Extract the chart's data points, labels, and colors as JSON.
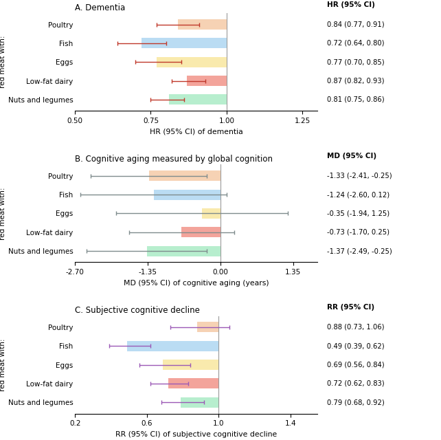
{
  "panel_A": {
    "title": "A. Dementia",
    "xlabel": "HR (95% CI) of dementia",
    "ylabel_col": "HR (95% CI)",
    "ref_line": 1.0,
    "xlim": [
      0.5,
      1.3
    ],
    "xticks": [
      0.5,
      0.75,
      1.0,
      1.25
    ],
    "xticklabels": [
      "0.50",
      "0.75",
      "1.00",
      "1.25"
    ],
    "categories": [
      "Poultry",
      "Fish",
      "Eggs",
      "Low-fat dairy",
      "Nuts and legumes"
    ],
    "bar_values": [
      0.84,
      0.72,
      0.77,
      0.87,
      0.81
    ],
    "ci_low": [
      0.77,
      0.64,
      0.7,
      0.82,
      0.75
    ],
    "ci_high": [
      0.91,
      0.8,
      0.85,
      0.93,
      0.86
    ],
    "bar_colors": [
      "#F5CBA7",
      "#AED6F1",
      "#F9E79F",
      "#F1948A",
      "#ABEBC6"
    ],
    "err_color": "#C0392B",
    "annotations": [
      "0.84 (0.77, 0.91)",
      "0.72 (0.64, 0.80)",
      "0.77 (0.70, 0.85)",
      "0.87 (0.82, 0.93)",
      "0.81 (0.75, 0.86)"
    ]
  },
  "panel_B": {
    "title": "B. Cognitive aging measured by global cognition",
    "xlabel": "MD (95% CI) of cognitive aging (years)",
    "ylabel_col": "MD (95% CI)",
    "ref_line": 0.0,
    "xlim": [
      -2.7,
      1.8
    ],
    "xticks": [
      -2.7,
      -1.35,
      0.0,
      1.35
    ],
    "xticklabels": [
      "-2.70",
      "-1.35",
      "0.00",
      "1.35"
    ],
    "categories": [
      "Poultry",
      "Fish",
      "Eggs",
      "Low-fat dairy",
      "Nuts and legumes"
    ],
    "bar_values": [
      -1.33,
      -1.24,
      -0.35,
      -0.73,
      -1.37
    ],
    "ci_low": [
      -2.41,
      -2.6,
      -1.94,
      -1.7,
      -2.49
    ],
    "ci_high": [
      -0.25,
      0.12,
      1.25,
      0.25,
      -0.25
    ],
    "bar_colors": [
      "#F5CBA7",
      "#AED6F1",
      "#F9E79F",
      "#F1948A",
      "#ABEBC6"
    ],
    "err_color": "#7F8C8D",
    "annotations": [
      "-1.33 (-2.41, -0.25)",
      "-1.24 (-2.60, 0.12)",
      "-0.35 (-1.94, 1.25)",
      "-0.73 (-1.70, 0.25)",
      "-1.37 (-2.49, -0.25)"
    ]
  },
  "panel_C": {
    "title": "C. Subjective cognitive decline",
    "xlabel": "RR (95% CI) of subjective cognitive decline",
    "ylabel_col": "RR (95% CI)",
    "ref_line": 1.0,
    "xlim": [
      0.2,
      1.55
    ],
    "xticks": [
      0.2,
      0.6,
      1.0,
      1.4
    ],
    "xticklabels": [
      "0.2",
      "0.6",
      "1.0",
      "1.4"
    ],
    "categories": [
      "Poultry",
      "Fish",
      "Eggs",
      "Low-fat dairy",
      "Nuts and legumes"
    ],
    "bar_values": [
      0.88,
      0.49,
      0.69,
      0.72,
      0.79
    ],
    "ci_low": [
      0.73,
      0.39,
      0.56,
      0.62,
      0.68
    ],
    "ci_high": [
      1.06,
      0.62,
      0.84,
      0.83,
      0.92
    ],
    "bar_colors": [
      "#F5CBA7",
      "#AED6F1",
      "#F9E79F",
      "#F1948A",
      "#ABEBC6"
    ],
    "err_color": "#9B59B6",
    "annotations": [
      "0.88 (0.73, 1.06)",
      "0.49 (0.39, 0.62)",
      "0.69 (0.56, 0.84)",
      "0.72 (0.62, 0.83)",
      "0.79 (0.68, 0.92)"
    ]
  },
  "ylabel_left": "Replacing processed\nred meat with:",
  "bar_height": 0.55,
  "figure_bg": "#FFFFFF"
}
